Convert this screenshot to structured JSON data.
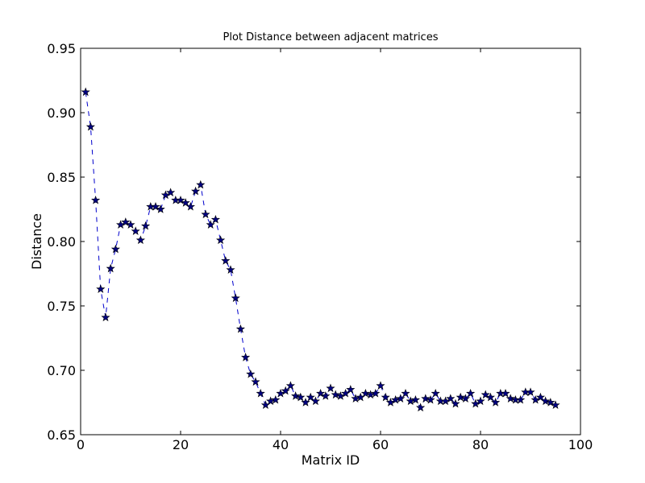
{
  "chart_data": {
    "type": "line",
    "title": "Plot Distance between adjacent matrices",
    "xlabel": "Matrix ID",
    "ylabel": "Distance",
    "xlim": [
      0,
      100
    ],
    "ylim": [
      0.65,
      0.95
    ],
    "xticks": [
      0,
      20,
      40,
      60,
      80,
      100
    ],
    "yticks": [
      0.65,
      0.7,
      0.75,
      0.8,
      0.85,
      0.9,
      0.95
    ],
    "xtick_labels": [
      "0",
      "20",
      "40",
      "60",
      "80",
      "100"
    ],
    "ytick_labels": [
      "0.65",
      "0.70",
      "0.75",
      "0.80",
      "0.85",
      "0.90",
      "0.95"
    ],
    "grid": false,
    "line_style": "dashed",
    "marker": "star",
    "color": "#0000cc",
    "marker_face_color": "#000080",
    "series": [
      {
        "x": [
          1,
          2,
          3,
          4,
          5,
          6,
          7,
          8,
          9,
          10,
          11,
          12,
          13,
          14,
          15,
          16,
          17,
          18,
          19,
          20,
          21,
          22,
          23,
          24,
          25,
          26,
          27,
          28,
          29,
          30,
          31,
          32,
          33,
          34,
          35,
          36,
          37,
          38,
          39,
          40,
          41,
          42,
          43,
          44,
          45,
          46,
          47,
          48,
          49,
          50,
          51,
          52,
          53,
          54,
          55,
          56,
          57,
          58,
          59,
          60,
          61,
          62,
          63,
          64,
          65,
          66,
          67,
          68,
          69,
          70,
          71,
          72,
          73,
          74,
          75,
          76,
          77,
          78,
          79,
          80,
          81,
          82,
          83,
          84,
          85,
          86,
          87,
          88,
          89,
          90,
          91,
          92,
          93,
          94,
          95
        ],
        "y": [
          0.916,
          0.889,
          0.832,
          0.763,
          0.741,
          0.779,
          0.794,
          0.813,
          0.815,
          0.813,
          0.808,
          0.801,
          0.812,
          0.827,
          0.827,
          0.825,
          0.836,
          0.838,
          0.832,
          0.832,
          0.83,
          0.827,
          0.839,
          0.844,
          0.821,
          0.813,
          0.817,
          0.801,
          0.785,
          0.778,
          0.756,
          0.732,
          0.71,
          0.697,
          0.691,
          0.682,
          0.673,
          0.676,
          0.677,
          0.682,
          0.684,
          0.688,
          0.68,
          0.679,
          0.675,
          0.679,
          0.676,
          0.682,
          0.68,
          0.686,
          0.681,
          0.68,
          0.682,
          0.685,
          0.678,
          0.679,
          0.682,
          0.681,
          0.682,
          0.688,
          0.679,
          0.675,
          0.677,
          0.678,
          0.682,
          0.676,
          0.677,
          0.671,
          0.678,
          0.677,
          0.682,
          0.676,
          0.676,
          0.678,
          0.674,
          0.679,
          0.678,
          0.682,
          0.674,
          0.676,
          0.681,
          0.679,
          0.675,
          0.682,
          0.682,
          0.678,
          0.677,
          0.677,
          0.683,
          0.683,
          0.677,
          0.679,
          0.676,
          0.675,
          0.673
        ]
      }
    ]
  }
}
